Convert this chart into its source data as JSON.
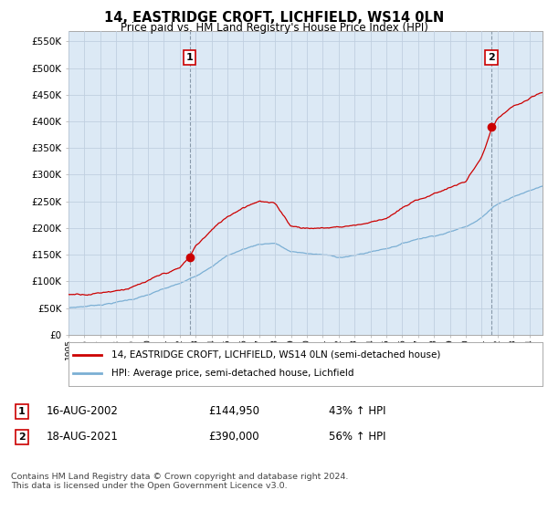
{
  "title": "14, EASTRIDGE CROFT, LICHFIELD, WS14 0LN",
  "subtitle": "Price paid vs. HM Land Registry's House Price Index (HPI)",
  "ylabel_ticks": [
    "£0",
    "£50K",
    "£100K",
    "£150K",
    "£200K",
    "£250K",
    "£300K",
    "£350K",
    "£400K",
    "£450K",
    "£500K",
    "£550K"
  ],
  "ytick_values": [
    0,
    50000,
    100000,
    150000,
    200000,
    250000,
    300000,
    350000,
    400000,
    450000,
    500000,
    550000
  ],
  "ylim": [
    0,
    570000
  ],
  "xlim_start": 1995.0,
  "xlim_end": 2024.83,
  "hpi_color": "#7bafd4",
  "price_color": "#cc0000",
  "chart_bg": "#dce9f5",
  "marker1_x": 2002.62,
  "marker1_y": 144950,
  "marker2_x": 2021.62,
  "marker2_y": 390000,
  "vline_color": "#8899aa",
  "legend_label_price": "14, EASTRIDGE CROFT, LICHFIELD, WS14 0LN (semi-detached house)",
  "legend_label_hpi": "HPI: Average price, semi-detached house, Lichfield",
  "annotation1_label": "1",
  "annotation1_date": "16-AUG-2002",
  "annotation1_price": "£144,950",
  "annotation1_hpi": "43% ↑ HPI",
  "annotation2_label": "2",
  "annotation2_date": "18-AUG-2021",
  "annotation2_price": "£390,000",
  "annotation2_hpi": "56% ↑ HPI",
  "footer": "Contains HM Land Registry data © Crown copyright and database right 2024.\nThis data is licensed under the Open Government Licence v3.0.",
  "background_color": "#ffffff",
  "grid_color": "#c0cfe0"
}
